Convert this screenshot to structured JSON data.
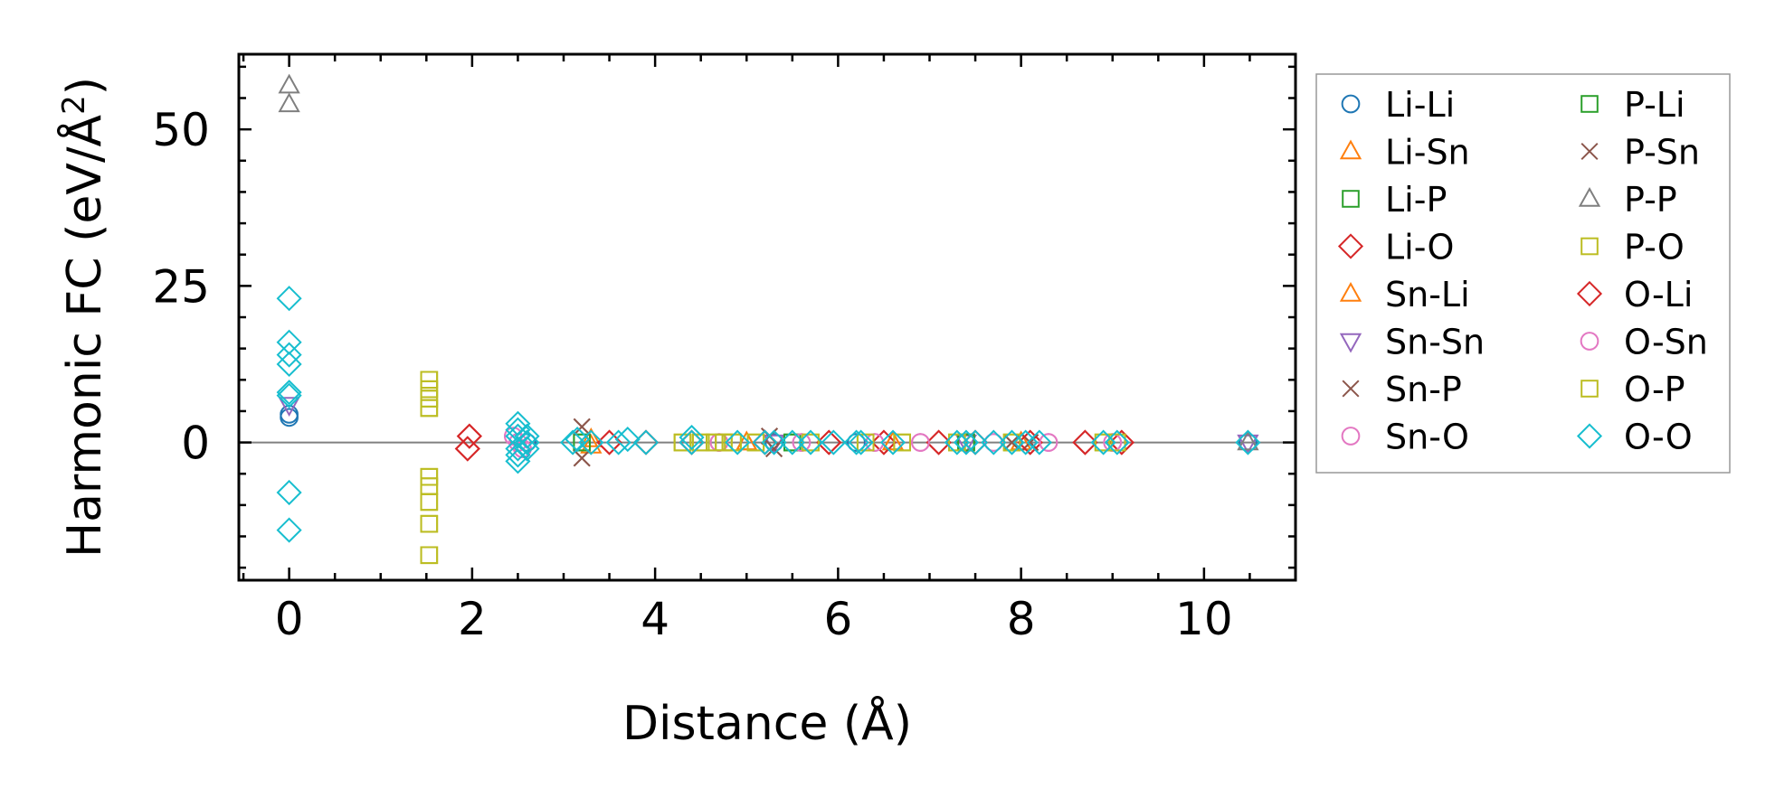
{
  "chart_data": {
    "type": "scatter",
    "xlabel": "Distance (Å)",
    "ylabel_main": "Harmonic FC (eV/Å",
    "ylabel_sup": "2",
    "ylabel_tail": ")",
    "xlim": [
      -0.55,
      11.0
    ],
    "ylim": [
      -22,
      62
    ],
    "xticks": [
      0,
      2,
      4,
      6,
      8,
      10
    ],
    "yticks": [
      0,
      25,
      50
    ],
    "xtick_labels": [
      "0",
      "2",
      "4",
      "6",
      "8",
      "10"
    ],
    "ytick_labels": [
      "0",
      "25",
      "50"
    ],
    "grid": false,
    "zero_line": true,
    "legend_position": "outside-right",
    "series": [
      {
        "name": "Li-Li",
        "marker": "circle",
        "color": "#1f77b4",
        "x": [
          0,
          0,
          2.6,
          5.3,
          6.2,
          7.4,
          10.48
        ],
        "y": [
          4.0,
          4.5,
          0,
          0,
          0,
          0,
          0
        ]
      },
      {
        "name": "Li-Sn",
        "marker": "triangle-up",
        "color": "#ff7f0e",
        "x": [
          3.3,
          5.0,
          6.6,
          8.0
        ],
        "y": [
          0.5,
          0,
          0,
          0
        ]
      },
      {
        "name": "Li-P",
        "marker": "square",
        "color": "#2ca02c",
        "x": [
          3.2,
          5.5,
          7.4
        ],
        "y": [
          0,
          0,
          0
        ]
      },
      {
        "name": "Li-O",
        "marker": "diamond",
        "color": "#d62728",
        "x": [
          1.95,
          1.97,
          3.5,
          3.9,
          4.4,
          5.2,
          5.9,
          6.5,
          7.1,
          7.5,
          8.1,
          8.7,
          9.1
        ],
        "y": [
          -1.0,
          1.0,
          0,
          0,
          0,
          0,
          0,
          0,
          0,
          0,
          0,
          0,
          0
        ]
      },
      {
        "name": "Sn-Li",
        "marker": "triangle-up",
        "color": "#ff7f0e",
        "x": [
          3.3,
          5.0,
          6.6,
          8.0
        ],
        "y": [
          -0.5,
          0,
          0,
          0
        ]
      },
      {
        "name": "Sn-Sn",
        "marker": "triangle-down",
        "color": "#9467bd",
        "x": [
          0,
          5.3,
          7.4,
          10.48
        ],
        "y": [
          6.0,
          0,
          0,
          0
        ]
      },
      {
        "name": "Sn-P",
        "marker": "x",
        "color": "#8c564b",
        "x": [
          3.2,
          3.2,
          5.25,
          5.3,
          7.9,
          8.1
        ],
        "y": [
          2.5,
          -2.5,
          1.0,
          -1.0,
          0,
          0
        ]
      },
      {
        "name": "Sn-O",
        "marker": "circle",
        "color": "#e377c2",
        "x": [
          2.45,
          2.5,
          2.55,
          4.7,
          5.6,
          6.4,
          6.9,
          7.7,
          8.3,
          9.0
        ],
        "y": [
          1.0,
          0,
          -1.0,
          0,
          0,
          0,
          0,
          0,
          0,
          0
        ]
      },
      {
        "name": "P-Li",
        "marker": "square",
        "color": "#2ca02c",
        "x": [
          3.2,
          5.5,
          7.4
        ],
        "y": [
          0,
          0,
          0
        ]
      },
      {
        "name": "P-Sn",
        "marker": "x",
        "color": "#8c564b",
        "x": [
          3.2,
          3.2,
          5.25,
          5.3,
          7.9,
          8.1
        ],
        "y": [
          2.5,
          -2.5,
          1.0,
          -1.0,
          0,
          0
        ]
      },
      {
        "name": "P-P",
        "marker": "triangle-up",
        "color": "#7f7f7f",
        "x": [
          0,
          0,
          10.48
        ],
        "y": [
          57.0,
          54.0,
          0
        ]
      },
      {
        "name": "P-O",
        "marker": "square",
        "color": "#bcbd22",
        "x": [
          1.53,
          1.53,
          1.53,
          1.53,
          1.53,
          1.53,
          1.53,
          1.53,
          1.53,
          4.3,
          4.5,
          4.65,
          4.75,
          4.85,
          5.1,
          5.7,
          6.3,
          6.7,
          7.3,
          7.9,
          8.9,
          9.05
        ],
        "y": [
          10.0,
          8.5,
          7.0,
          5.5,
          -5.5,
          -7.0,
          -9.5,
          -13.0,
          -18.0,
          0,
          0,
          0,
          0,
          0,
          0,
          0,
          0,
          0,
          0,
          0,
          0,
          0
        ]
      },
      {
        "name": "O-Li",
        "marker": "diamond",
        "color": "#d62728",
        "x": [
          1.95,
          1.97,
          3.5,
          3.9,
          4.4,
          5.2,
          5.9,
          6.5,
          7.1,
          7.5,
          8.1,
          8.7,
          9.1
        ],
        "y": [
          -1.0,
          1.0,
          0,
          0,
          0,
          0,
          0,
          0,
          0,
          0,
          0,
          0,
          0
        ]
      },
      {
        "name": "O-Sn",
        "marker": "circle",
        "color": "#e377c2",
        "x": [
          2.45,
          2.5,
          2.55,
          4.7,
          5.6,
          6.4,
          6.9,
          7.7,
          8.3,
          9.0
        ],
        "y": [
          1.0,
          0,
          -1.0,
          0,
          0,
          0,
          0,
          0,
          0,
          0
        ]
      },
      {
        "name": "O-P",
        "marker": "square",
        "color": "#bcbd22",
        "x": [
          1.53,
          1.53,
          1.53,
          1.53,
          1.53,
          1.53,
          1.53,
          1.53,
          1.53,
          4.3,
          4.5,
          4.65,
          4.75,
          4.85,
          5.1,
          5.7,
          6.3,
          6.7,
          7.3,
          7.9,
          8.9,
          9.05
        ],
        "y": [
          10.0,
          8.5,
          7.0,
          5.5,
          -5.5,
          -7.0,
          -9.5,
          -13.0,
          -18.0,
          0,
          0,
          0,
          0,
          0,
          0,
          0,
          0,
          0,
          0,
          0,
          0,
          0
        ]
      },
      {
        "name": "O-O",
        "marker": "diamond",
        "color": "#17becf",
        "x": [
          0,
          0,
          0,
          0,
          0,
          0,
          0,
          0,
          2.5,
          2.5,
          2.5,
          2.5,
          2.5,
          2.5,
          2.6,
          2.6,
          2.6,
          3.1,
          3.15,
          3.3,
          3.6,
          3.7,
          3.9,
          4.4,
          4.4,
          4.9,
          5.2,
          5.3,
          5.5,
          5.7,
          5.95,
          6.2,
          6.25,
          6.6,
          7.3,
          7.4,
          7.5,
          7.7,
          7.9,
          8.05,
          8.2,
          8.9,
          9.05,
          10.48
        ],
        "y": [
          23.0,
          16.0,
          14.0,
          12.5,
          8.0,
          7.5,
          -8.0,
          -14.0,
          3.0,
          2.0,
          1.0,
          -1.0,
          -2.0,
          -3.0,
          1.0,
          0,
          -1.0,
          0,
          0.5,
          0,
          0,
          0.5,
          0,
          0,
          0.8,
          0,
          0,
          0,
          0,
          0,
          0,
          0,
          0,
          0,
          0,
          0,
          0,
          0,
          0,
          0,
          0,
          0,
          0,
          0
        ]
      }
    ]
  }
}
